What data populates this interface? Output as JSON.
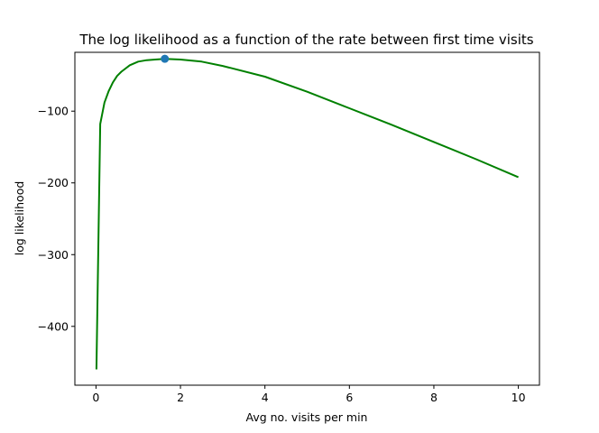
{
  "chart_data": {
    "type": "line",
    "title": "The log likelihood as a function of the rate between first time visits",
    "xlabel": "Avg no. visits per min",
    "ylabel": "log likelihood",
    "xlim": [
      -0.5,
      10.5
    ],
    "ylim": [
      -482,
      -18
    ],
    "x_ticks": [
      0,
      2,
      4,
      6,
      8,
      10
    ],
    "y_ticks": [
      -100,
      -200,
      -300,
      -400
    ],
    "x_tick_labels": [
      "0",
      "2",
      "4",
      "6",
      "8",
      "10"
    ],
    "y_tick_labels": [
      "−100",
      "−200",
      "−300",
      "−400"
    ],
    "grid": false,
    "series": [
      {
        "color": "#008000",
        "x": [
          0.01,
          0.1,
          0.2,
          0.3,
          0.4,
          0.5,
          0.6,
          0.8,
          1.0,
          1.2,
          1.4,
          1.63,
          2.0,
          2.5,
          3.0,
          4.0,
          5.0,
          6.0,
          7.0,
          8.0,
          9.0,
          10.0
        ],
        "y": [
          -460,
          -118,
          -88,
          -72,
          -60,
          -51,
          -45,
          -36,
          -31,
          -29,
          -28,
          -27,
          -28,
          -31,
          -37,
          -52,
          -73,
          -96,
          -119,
          -143,
          -167,
          -192
        ]
      }
    ],
    "highlight_point": {
      "x": 1.63,
      "y": -27,
      "color": "#1f77b4"
    }
  }
}
